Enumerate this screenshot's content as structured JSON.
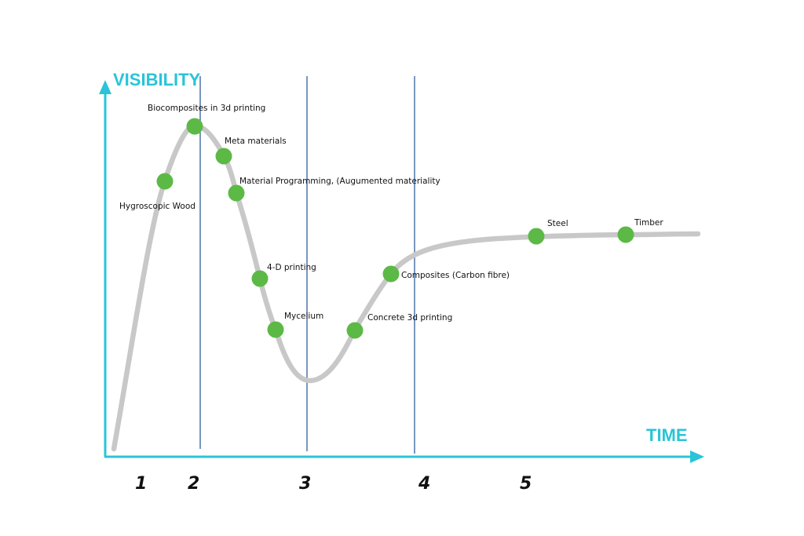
{
  "axes": {
    "y_title": "VISIBILITY",
    "x_title": "TIME",
    "axis_color": "#29c4d8"
  },
  "curve": {
    "color": "#c8c8c8",
    "label_points": [
      {
        "label": "Hygroscopic Wood"
      },
      {
        "label": "Biocomposites  in 3d printing"
      },
      {
        "label": "Meta materials"
      },
      {
        "label": "Material Programming, (Augumented materiality"
      },
      {
        "label": "4-D printing"
      },
      {
        "label": "Mycelium"
      },
      {
        "label": "Concrete 3d printing"
      },
      {
        "label": "Composites (Carbon fibre)"
      },
      {
        "label": "Steel"
      },
      {
        "label": "Timber"
      }
    ],
    "dot_color": "#5cb946"
  },
  "phases": [
    "1",
    "2",
    "3",
    "4",
    "5"
  ],
  "divider_color": "#2f5f9e"
}
